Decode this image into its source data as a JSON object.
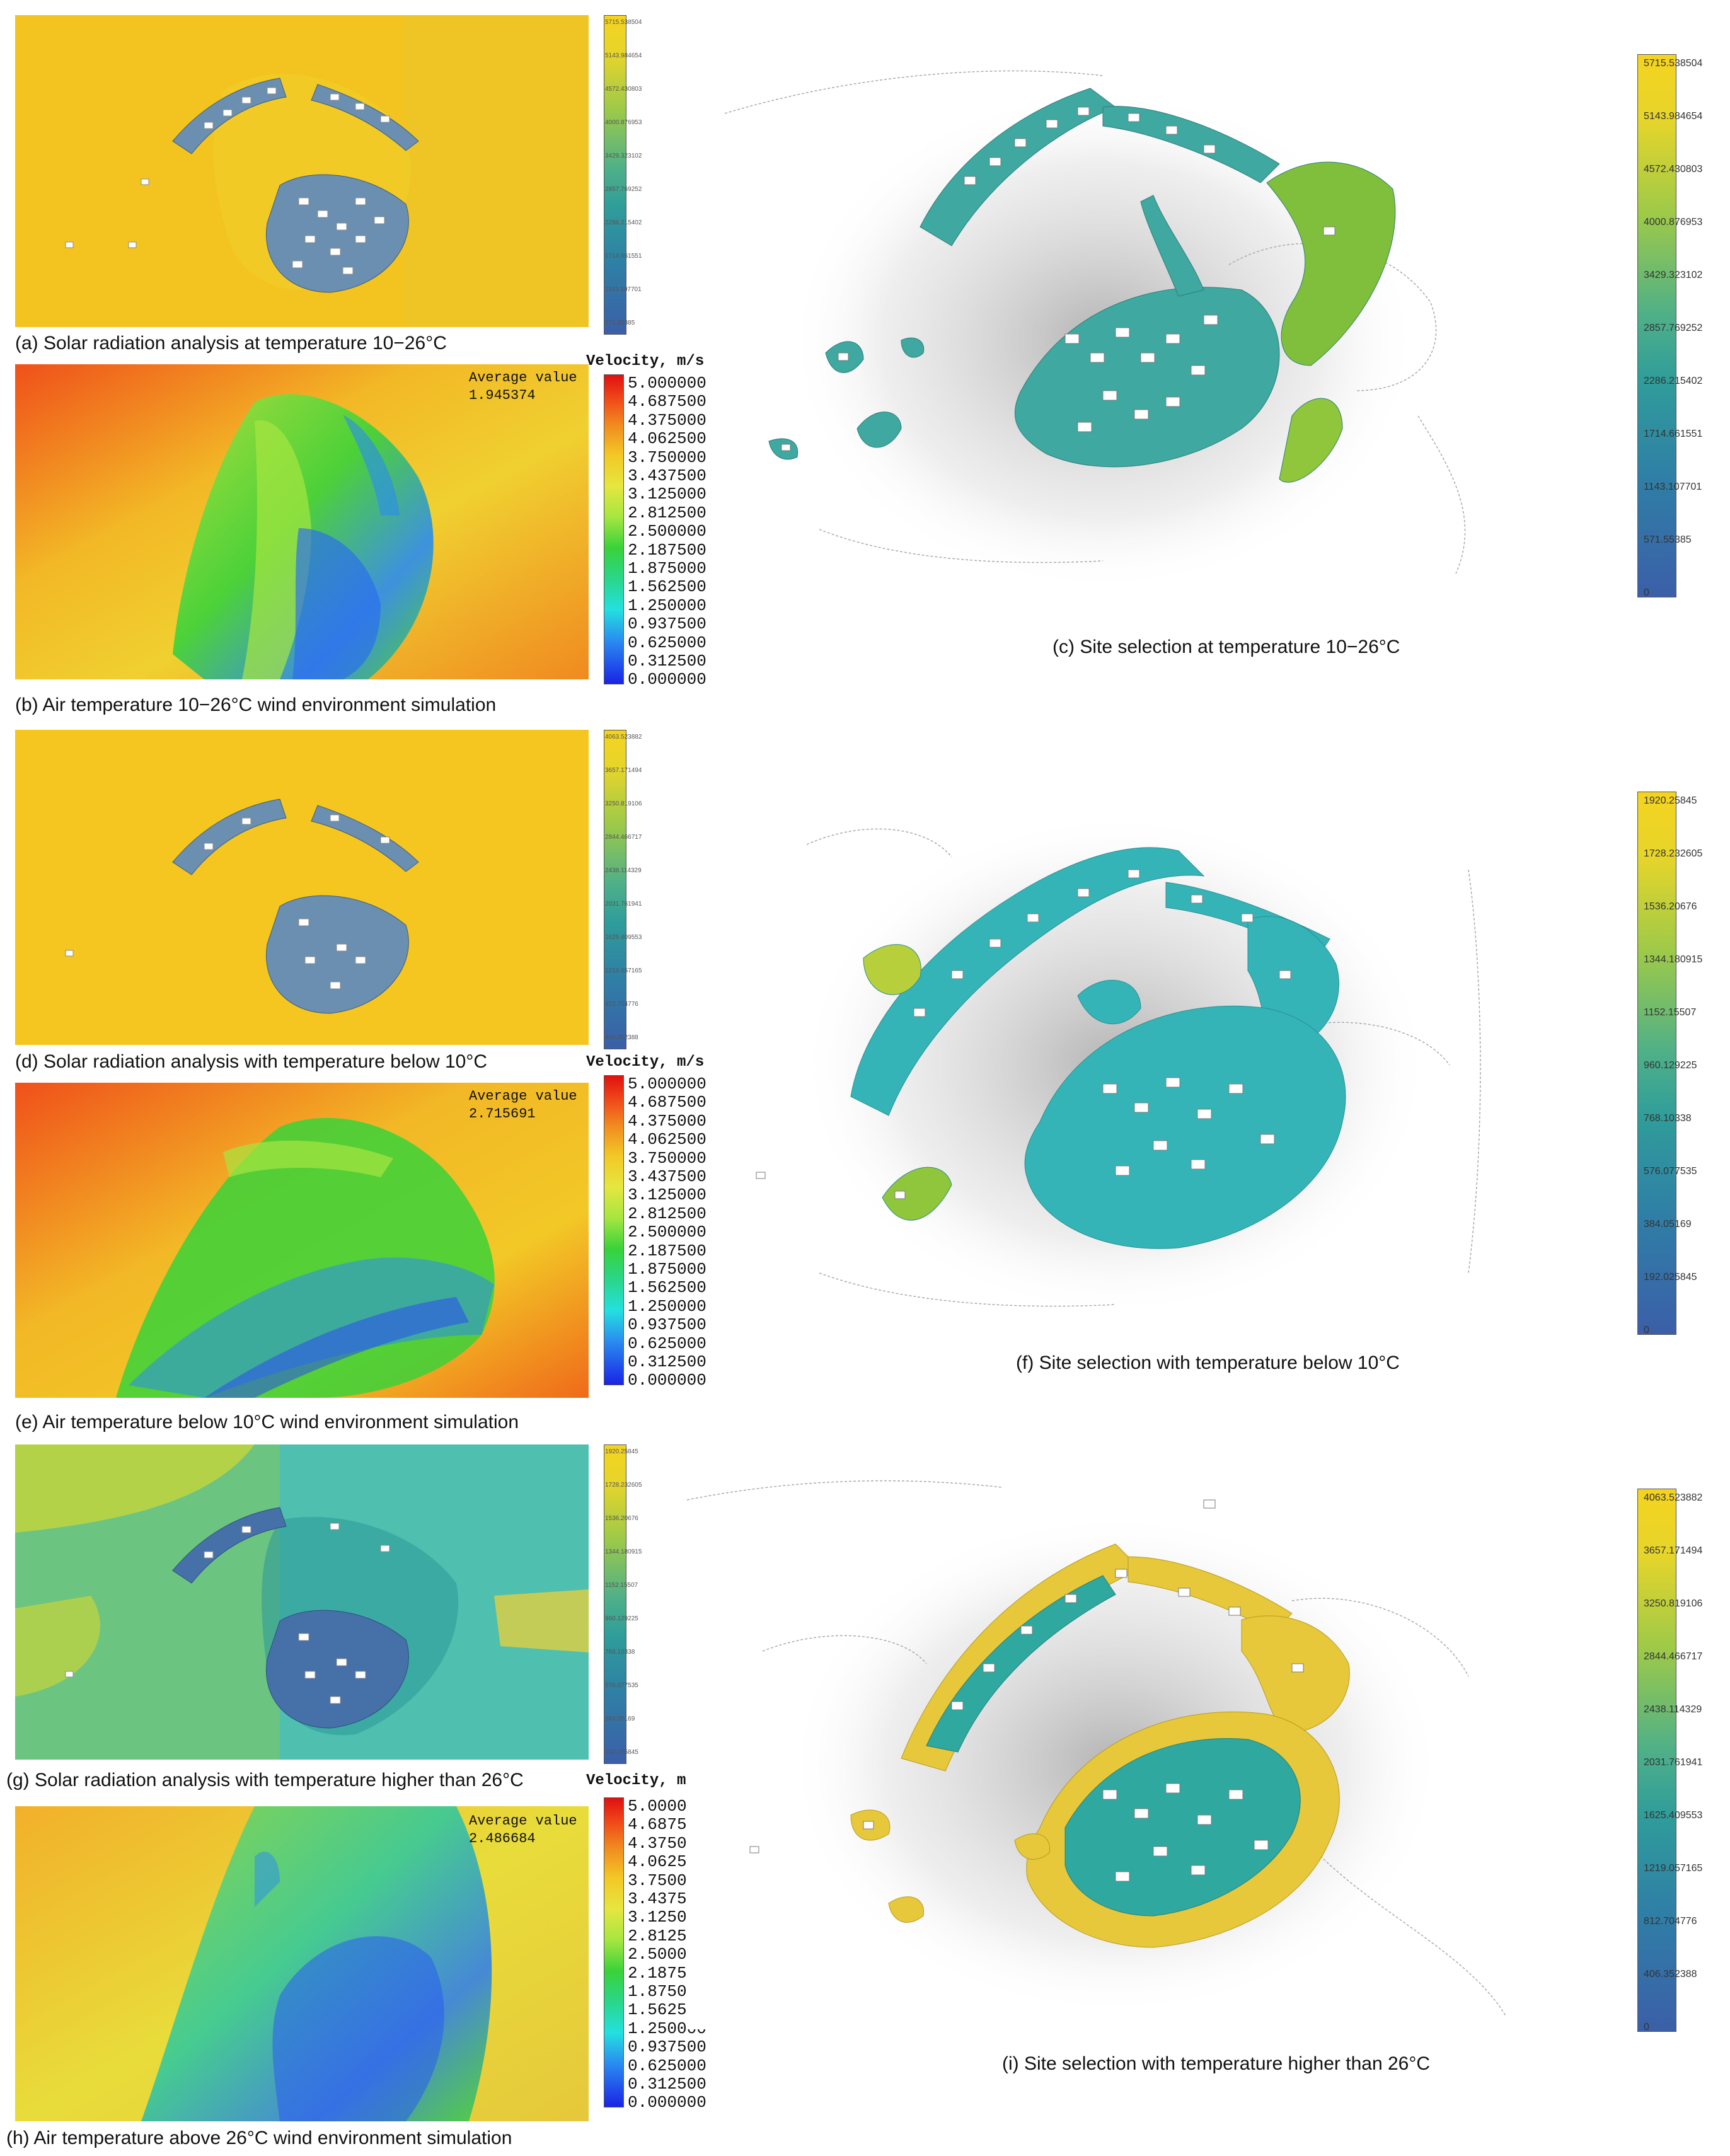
{
  "captions": {
    "a": "(a) Solar radiation analysis at temperature 10−26°C",
    "b": "(b) Air temperature 10−26°C wind environment simulation",
    "c": "(c) Site selection at temperature 10−26°C",
    "d": "(d) Solar radiation analysis with temperature below 10°C",
    "e": "(e) Air temperature below 10°C wind environment simulation",
    "f": "(f) Site selection with temperature below 10°C",
    "g": "(g) Solar radiation analysis with temperature higher than 26°C",
    "h": "(h) Air temperature above 26°C wind environment simulation",
    "i": "(i) Site selection with temperature higher than 26°C"
  },
  "velocity": {
    "title": "Velocity, m/s",
    "ticks": [
      "5.000000",
      "4.687500",
      "4.375000",
      "4.062500",
      "3.750000",
      "3.437500",
      "3.125000",
      "2.812500",
      "2.500000",
      "2.187500",
      "1.875000",
      "1.562500",
      "1.250000",
      "0.937500",
      "0.625000",
      "0.312500",
      "0.000000"
    ],
    "avg_label": "Average value",
    "avg_b": "1.945374",
    "avg_e": "2.715691",
    "avg_h": "2.486684"
  },
  "scale_a": [
    "5715.538504",
    "5143.984654",
    "4572.430803",
    "4000.876953",
    "3429.323102",
    "2857.769252",
    "2286.215402",
    "1714.661551",
    "1143.107701",
    "571.55385"
  ],
  "scale_c": [
    "5715.538504",
    "5143.984654",
    "4572.430803",
    "4000.876953",
    "3429.323102",
    "2857.769252",
    "2286.215402",
    "1714.661551",
    "1143.107701",
    "571.55385",
    "0"
  ],
  "scale_d": [
    "4063.523882",
    "3657.171494",
    "3250.819106",
    "2844.466717",
    "2438.114329",
    "2031.761941",
    "1625.409553",
    "1219.057165",
    "812.704776",
    "406.352388"
  ],
  "scale_f": [
    "1920.25845",
    "1728.232605",
    "1536.20676",
    "1344.180915",
    "1152.15507",
    "960.129225",
    "768.10338",
    "576.077535",
    "384.05169",
    "192.025845",
    "0"
  ],
  "scale_g": [
    "1920.25845",
    "1728.232605",
    "1536.20676",
    "1344.180915",
    "1152.15507",
    "960.129225",
    "768.10338",
    "576.077535",
    "384.05169",
    "192.025845"
  ],
  "scale_i": [
    "4063.523882",
    "3657.171494",
    "3250.819106",
    "2844.466717",
    "2438.114329",
    "2031.761941",
    "1625.409553",
    "1219.057165",
    "812.704776",
    "406.352388",
    "0"
  ]
}
